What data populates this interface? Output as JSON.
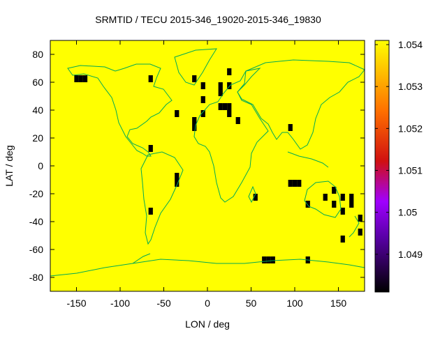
{
  "chart_data": {
    "type": "heatmap",
    "title": "SRMTID / TECU 2015-346_19020-2015-346_19830",
    "xlabel": "LON / deg",
    "ylabel": "LAT / deg",
    "xlim": [
      -180,
      180
    ],
    "ylim": [
      -90,
      90
    ],
    "xticks": [
      -150,
      -100,
      -50,
      0,
      50,
      100,
      150
    ],
    "yticks": [
      -80,
      -60,
      -40,
      -20,
      0,
      20,
      40,
      60,
      80
    ],
    "grid": false,
    "background_value": 1.054,
    "colorbar": {
      "range": [
        1.0481,
        1.0541
      ],
      "ticks": [
        1.049,
        1.05,
        1.051,
        1.052,
        1.053,
        1.054
      ],
      "tick_labels": [
        "1.049",
        "1.05",
        "1.051",
        "1.052",
        "1.053",
        "1.054"
      ]
    },
    "dark_cells": [
      {
        "lon": -150,
        "lat": 62.5
      },
      {
        "lon": -145,
        "lat": 62.5
      },
      {
        "lon": -140,
        "lat": 62.5
      },
      {
        "lon": -65,
        "lat": 62.5
      },
      {
        "lon": -15,
        "lat": 62.5
      },
      {
        "lon": -5,
        "lat": 57.5
      },
      {
        "lon": 25,
        "lat": 67.5
      },
      {
        "lon": 15,
        "lat": 57.5
      },
      {
        "lon": 25,
        "lat": 57.5
      },
      {
        "lon": 15,
        "lat": 52.5
      },
      {
        "lon": -5,
        "lat": 47.5
      },
      {
        "lon": 15,
        "lat": 42.5
      },
      {
        "lon": 20,
        "lat": 42.5
      },
      {
        "lon": 25,
        "lat": 42.5
      },
      {
        "lon": -35,
        "lat": 37.5
      },
      {
        "lon": -5,
        "lat": 37.5
      },
      {
        "lon": 25,
        "lat": 37.5
      },
      {
        "lon": -15,
        "lat": 32.5
      },
      {
        "lon": 35,
        "lat": 32.5
      },
      {
        "lon": -15,
        "lat": 27.5
      },
      {
        "lon": 95,
        "lat": 27.5
      },
      {
        "lon": -65,
        "lat": 12.5
      },
      {
        "lon": -35,
        "lat": -7.5
      },
      {
        "lon": -35,
        "lat": -12.5
      },
      {
        "lon": 95,
        "lat": -12.5
      },
      {
        "lon": 100,
        "lat": -12.5
      },
      {
        "lon": 105,
        "lat": -12.5
      },
      {
        "lon": 145,
        "lat": -17.5
      },
      {
        "lon": 55,
        "lat": -22.5
      },
      {
        "lon": 135,
        "lat": -22.5
      },
      {
        "lon": 155,
        "lat": -22.5
      },
      {
        "lon": 165,
        "lat": -22.5
      },
      {
        "lon": 115,
        "lat": -27.5
      },
      {
        "lon": 145,
        "lat": -27.5
      },
      {
        "lon": 165,
        "lat": -27.5
      },
      {
        "lon": -65,
        "lat": -32.5
      },
      {
        "lon": 155,
        "lat": -32.5
      },
      {
        "lon": 175,
        "lat": -37.5
      },
      {
        "lon": 175,
        "lat": -47.5
      },
      {
        "lon": 155,
        "lat": -52.5
      },
      {
        "lon": 65,
        "lat": -67.5
      },
      {
        "lon": 70,
        "lat": -67.5
      },
      {
        "lon": 75,
        "lat": -67.5
      },
      {
        "lon": 115,
        "lat": -67.5
      }
    ],
    "colors": {
      "background": "#ffff00",
      "dark_cell": "#000000",
      "coastline": "#00aa55"
    }
  }
}
